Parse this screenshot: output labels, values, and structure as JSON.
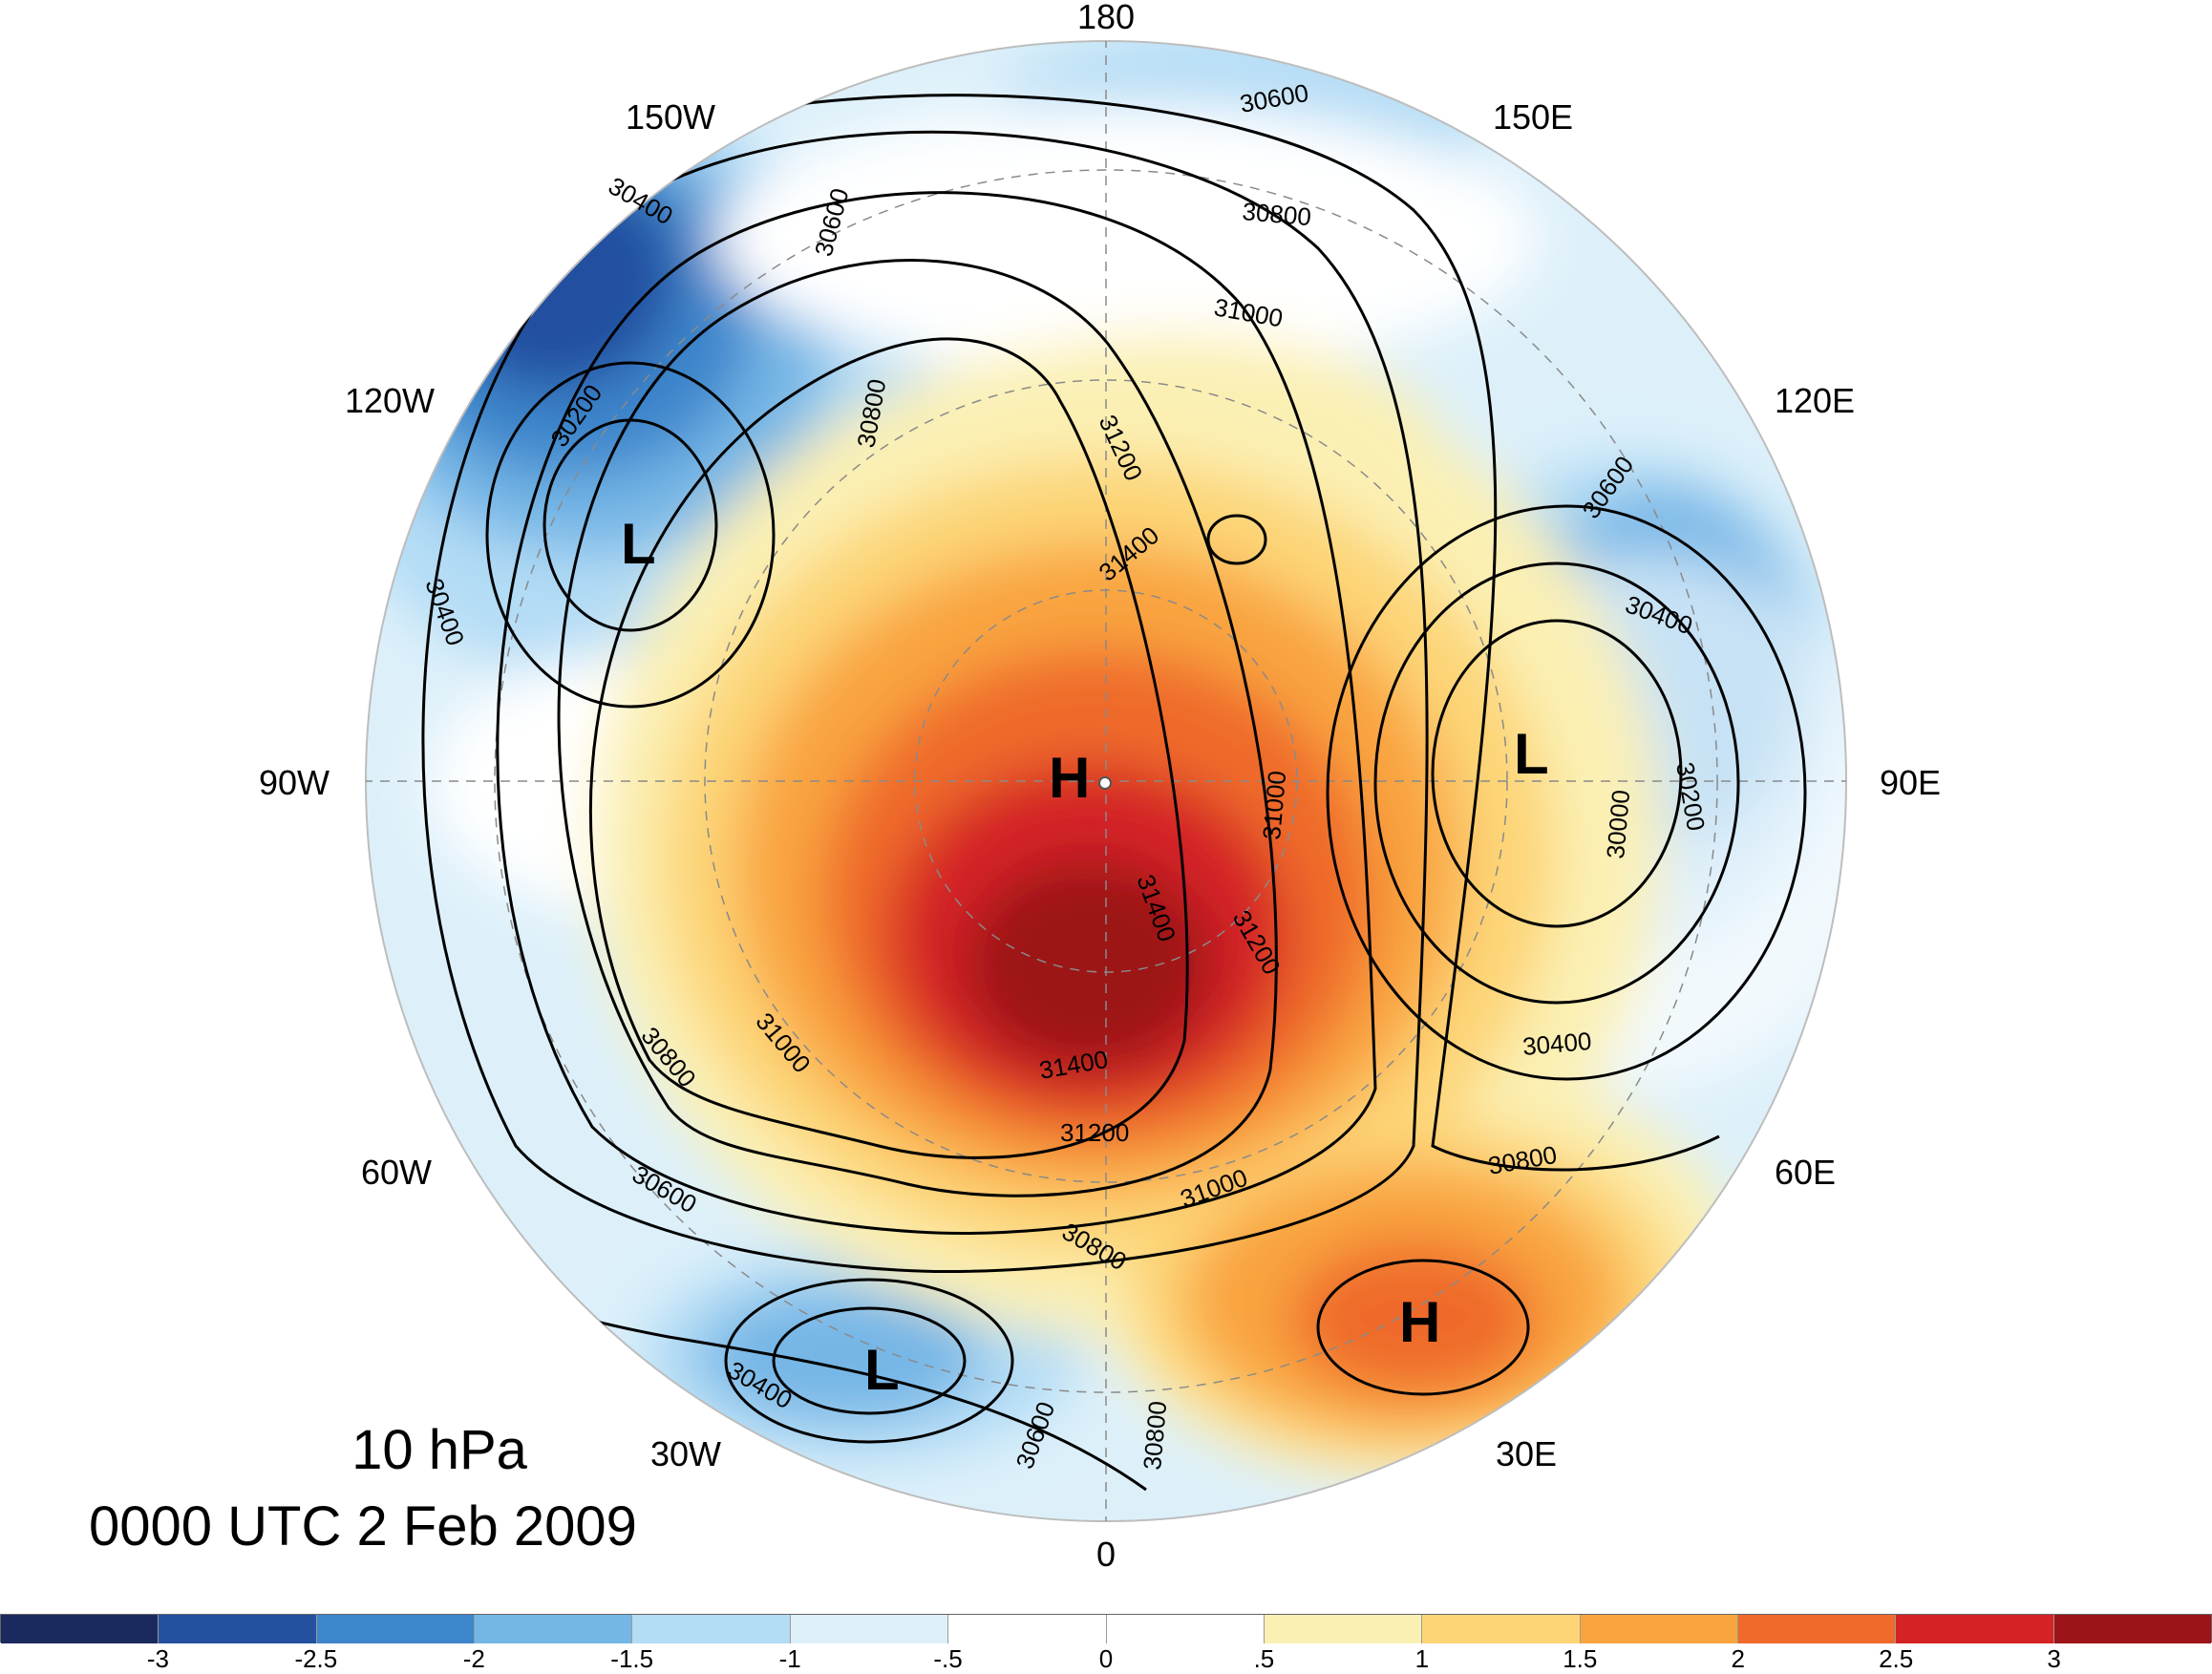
{
  "map": {
    "projection": "north-polar-stereographic",
    "longitude_labels": [
      "180",
      "150E",
      "120E",
      "90E",
      "60E",
      "30E",
      "0",
      "30W",
      "60W",
      "90W",
      "120W",
      "150W"
    ],
    "contour_labels": [
      "30600",
      "30800",
      "31000",
      "31200",
      "31400",
      "30400",
      "30200",
      "30000"
    ],
    "centers": [
      {
        "label": "H",
        "name": "high-pole"
      },
      {
        "label": "H",
        "name": "high-europe"
      },
      {
        "label": "L",
        "name": "low-alaska"
      },
      {
        "label": "L",
        "name": "low-siberia"
      },
      {
        "label": "L",
        "name": "low-atlantic"
      }
    ]
  },
  "title": {
    "level": "10 hPa",
    "time": "0000 UTC 2 Feb 2009"
  },
  "colorbar": {
    "colors": [
      "#1b2a5e",
      "#2450a0",
      "#3d86cc",
      "#74b6e6",
      "#b3dcf5",
      "#ddf0fa",
      "#ffffff",
      "#ffffff",
      "#fbf0b4",
      "#fdd577",
      "#f9a43f",
      "#ef6a2b",
      "#d42225",
      "#9c1417"
    ],
    "tick_labels": [
      "-3",
      "-2.5",
      "-2",
      "-1.5",
      "-1",
      "-.5",
      "0",
      ".5",
      "1",
      "1.5",
      "2",
      "2.5",
      "3"
    ]
  }
}
